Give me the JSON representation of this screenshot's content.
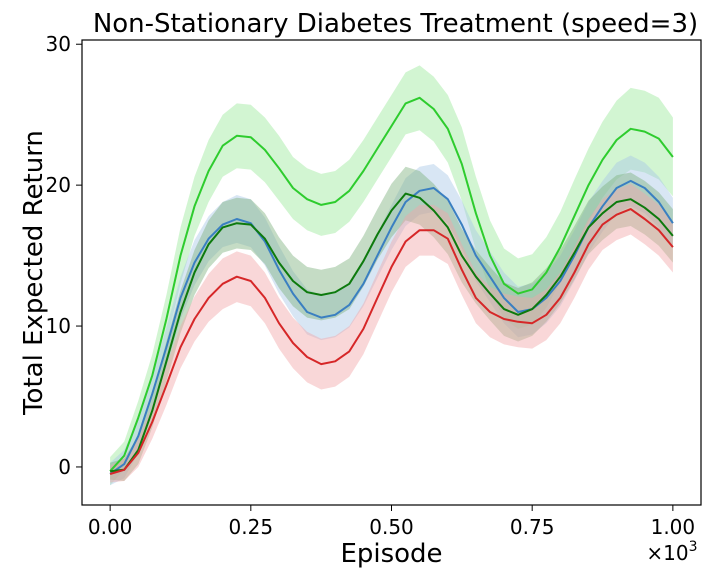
{
  "chart_data": {
    "type": "line",
    "title": "Non-Stationary Diabetes Treatment (speed=3)",
    "xlabel": "Episode",
    "ylabel": "Total Expected Return",
    "x_multiplier_label": "×10",
    "x_multiplier_exp": "3",
    "xlim": [
      -0.05,
      1.05
    ],
    "ylim": [
      -2.7,
      30.3
    ],
    "xticks": [
      0,
      0.25,
      0.5,
      0.75,
      1.0
    ],
    "xtick_labels": [
      "0.00",
      "0.25",
      "0.50",
      "0.75",
      "1.00"
    ],
    "yticks": [
      0,
      10,
      20,
      30
    ],
    "ytick_labels": [
      "0",
      "10",
      "20",
      "30"
    ],
    "grid": false,
    "legend": null,
    "x": [
      0.0,
      0.025,
      0.05,
      0.075,
      0.1,
      0.125,
      0.15,
      0.175,
      0.2,
      0.225,
      0.25,
      0.275,
      0.3,
      0.325,
      0.35,
      0.375,
      0.4,
      0.425,
      0.45,
      0.475,
      0.5,
      0.525,
      0.55,
      0.575,
      0.6,
      0.625,
      0.65,
      0.675,
      0.7,
      0.725,
      0.75,
      0.775,
      0.8,
      0.825,
      0.85,
      0.875,
      0.9,
      0.925,
      0.95,
      0.975,
      1.0
    ],
    "series": [
      {
        "name": "light green",
        "color": "#2ecc2e",
        "fill_color": "#9be89b",
        "values": [
          -0.3,
          0.8,
          3.5,
          6.5,
          10.5,
          15.0,
          18.5,
          21.0,
          22.8,
          23.5,
          23.4,
          22.5,
          21.2,
          19.8,
          19.0,
          18.6,
          18.8,
          19.6,
          21.0,
          22.6,
          24.2,
          25.8,
          26.2,
          25.4,
          24.0,
          21.5,
          18.0,
          15.0,
          13.0,
          12.3,
          12.6,
          13.8,
          15.6,
          17.8,
          20.0,
          21.8,
          23.2,
          24.0,
          23.8,
          23.3,
          22.0
        ],
        "band": [
          1.0,
          1.0,
          1.2,
          1.5,
          1.7,
          2.0,
          2.1,
          2.2,
          2.2,
          2.3,
          2.3,
          2.3,
          2.3,
          2.2,
          2.2,
          2.2,
          2.2,
          2.2,
          2.2,
          2.2,
          2.2,
          2.2,
          2.3,
          2.3,
          2.4,
          2.6,
          2.6,
          2.5,
          2.5,
          2.5,
          2.5,
          2.5,
          2.5,
          2.6,
          2.6,
          2.7,
          2.8,
          2.9,
          2.9,
          2.9,
          2.8
        ]
      },
      {
        "name": "blue",
        "color": "#3a7fc1",
        "fill_color": "#a9c8e6",
        "values": [
          -0.5,
          0.2,
          2.2,
          5.2,
          8.5,
          12.0,
          14.5,
          16.2,
          17.2,
          17.6,
          17.3,
          16.0,
          14.0,
          12.3,
          11.0,
          10.6,
          10.8,
          11.5,
          13.0,
          15.0,
          17.0,
          18.8,
          19.6,
          19.8,
          19.0,
          17.2,
          15.0,
          13.5,
          12.0,
          11.0,
          11.2,
          12.0,
          13.2,
          15.0,
          17.0,
          18.5,
          19.8,
          20.3,
          19.8,
          18.8,
          17.3
        ],
        "band": [
          0.8,
          1.0,
          1.2,
          1.3,
          1.4,
          1.5,
          1.6,
          1.6,
          1.6,
          1.7,
          1.7,
          1.7,
          1.7,
          1.6,
          1.6,
          1.6,
          1.6,
          1.6,
          1.6,
          1.6,
          1.6,
          1.7,
          1.7,
          1.7,
          1.7,
          1.7,
          1.8,
          1.8,
          1.8,
          1.8,
          1.8,
          1.8,
          1.8,
          1.8,
          1.8,
          1.8,
          1.8,
          1.8,
          1.8,
          1.8,
          1.8
        ]
      },
      {
        "name": "dark green",
        "color": "#0d7a0d",
        "fill_color": "#7fb27f",
        "values": [
          -0.3,
          -0.2,
          1.2,
          4.0,
          7.5,
          11.0,
          13.8,
          15.8,
          17.0,
          17.3,
          17.2,
          16.2,
          14.5,
          13.2,
          12.4,
          12.2,
          12.4,
          13.0,
          14.6,
          16.5,
          18.2,
          19.4,
          19.1,
          18.2,
          17.0,
          15.0,
          13.5,
          12.3,
          11.2,
          10.8,
          11.2,
          12.2,
          13.5,
          15.2,
          17.0,
          18.0,
          18.8,
          19.0,
          18.4,
          17.6,
          16.4
        ],
        "band": [
          0.6,
          0.8,
          1.0,
          1.2,
          1.4,
          1.5,
          1.6,
          1.7,
          1.8,
          1.8,
          1.8,
          1.8,
          1.8,
          1.8,
          1.8,
          1.8,
          1.8,
          1.8,
          1.8,
          1.8,
          1.9,
          1.9,
          1.9,
          1.9,
          1.9,
          1.9,
          1.9,
          1.9,
          1.9,
          1.9,
          1.9,
          1.9,
          1.9,
          1.9,
          1.9,
          1.9,
          1.9,
          1.9,
          1.9,
          1.9,
          1.9
        ]
      },
      {
        "name": "red",
        "color": "#d62728",
        "fill_color": "#f2a6a8",
        "values": [
          -0.5,
          -0.2,
          1.0,
          3.2,
          5.8,
          8.5,
          10.5,
          12.0,
          13.0,
          13.5,
          13.2,
          12.0,
          10.2,
          8.8,
          7.8,
          7.3,
          7.5,
          8.2,
          9.8,
          12.0,
          14.2,
          16.0,
          16.8,
          16.8,
          16.2,
          14.0,
          12.0,
          11.0,
          10.5,
          10.3,
          10.2,
          10.8,
          12.0,
          13.8,
          15.8,
          17.2,
          17.9,
          18.3,
          17.6,
          16.8,
          15.6
        ],
        "band": [
          0.6,
          0.8,
          1.0,
          1.2,
          1.4,
          1.5,
          1.6,
          1.7,
          1.8,
          1.8,
          1.8,
          1.8,
          1.8,
          1.8,
          1.8,
          1.8,
          1.8,
          1.8,
          1.8,
          1.8,
          1.8,
          1.8,
          1.8,
          1.8,
          1.8,
          1.8,
          1.8,
          1.8,
          1.8,
          1.8,
          1.8,
          1.8,
          1.8,
          1.8,
          1.8,
          1.8,
          1.8,
          1.8,
          1.8,
          1.8,
          1.8
        ]
      }
    ]
  }
}
